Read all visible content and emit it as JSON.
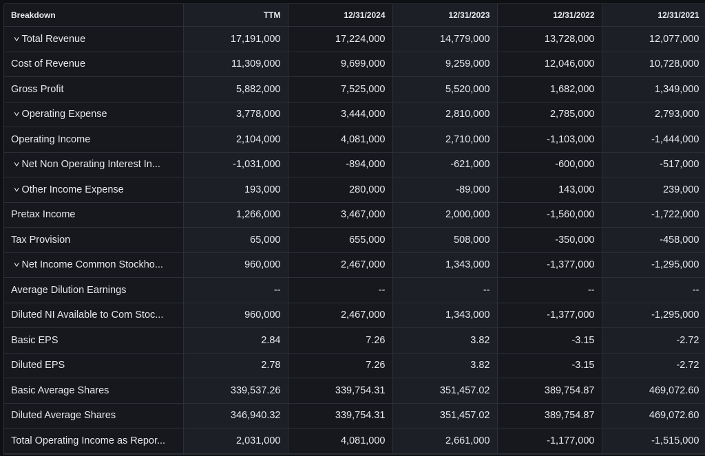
{
  "headers": [
    "Breakdown",
    "TTM",
    "12/31/2024",
    "12/31/2023",
    "12/31/2022",
    "12/31/2021"
  ],
  "rows": [
    {
      "label": "Total Revenue",
      "expandable": true,
      "values": [
        "17,191,000",
        "17,224,000",
        "14,779,000",
        "13,728,000",
        "12,077,000"
      ]
    },
    {
      "label": "Cost of Revenue",
      "expandable": false,
      "values": [
        "11,309,000",
        "9,699,000",
        "9,259,000",
        "12,046,000",
        "10,728,000"
      ]
    },
    {
      "label": "Gross Profit",
      "expandable": false,
      "values": [
        "5,882,000",
        "7,525,000",
        "5,520,000",
        "1,682,000",
        "1,349,000"
      ]
    },
    {
      "label": "Operating Expense",
      "expandable": true,
      "values": [
        "3,778,000",
        "3,444,000",
        "2,810,000",
        "2,785,000",
        "2,793,000"
      ]
    },
    {
      "label": "Operating Income",
      "expandable": false,
      "values": [
        "2,104,000",
        "4,081,000",
        "2,710,000",
        "-1,103,000",
        "-1,444,000"
      ]
    },
    {
      "label": "Net Non Operating Interest In...",
      "expandable": true,
      "values": [
        "-1,031,000",
        "-894,000",
        "-621,000",
        "-600,000",
        "-517,000"
      ]
    },
    {
      "label": "Other Income Expense",
      "expandable": true,
      "values": [
        "193,000",
        "280,000",
        "-89,000",
        "143,000",
        "239,000"
      ]
    },
    {
      "label": "Pretax Income",
      "expandable": false,
      "values": [
        "1,266,000",
        "3,467,000",
        "2,000,000",
        "-1,560,000",
        "-1,722,000"
      ]
    },
    {
      "label": "Tax Provision",
      "expandable": false,
      "values": [
        "65,000",
        "655,000",
        "508,000",
        "-350,000",
        "-458,000"
      ]
    },
    {
      "label": "Net Income Common Stockho...",
      "expandable": true,
      "values": [
        "960,000",
        "2,467,000",
        "1,343,000",
        "-1,377,000",
        "-1,295,000"
      ]
    },
    {
      "label": "Average Dilution Earnings",
      "expandable": false,
      "values": [
        "--",
        "--",
        "--",
        "--",
        "--"
      ]
    },
    {
      "label": "Diluted NI Available to Com Stoc...",
      "expandable": false,
      "values": [
        "960,000",
        "2,467,000",
        "1,343,000",
        "-1,377,000",
        "-1,295,000"
      ]
    },
    {
      "label": "Basic EPS",
      "expandable": false,
      "values": [
        "2.84",
        "7.26",
        "3.82",
        "-3.15",
        "-2.72"
      ]
    },
    {
      "label": "Diluted EPS",
      "expandable": false,
      "values": [
        "2.78",
        "7.26",
        "3.82",
        "-3.15",
        "-2.72"
      ]
    },
    {
      "label": "Basic Average Shares",
      "expandable": false,
      "values": [
        "339,537.26",
        "339,754.31",
        "351,457.02",
        "389,754.87",
        "469,072.60"
      ]
    },
    {
      "label": "Diluted Average Shares",
      "expandable": false,
      "values": [
        "346,940.32",
        "339,754.31",
        "351,457.02",
        "389,754.87",
        "469,072.60"
      ]
    },
    {
      "label": "Total Operating Income as Repor...",
      "expandable": false,
      "values": [
        "2,031,000",
        "4,081,000",
        "2,661,000",
        "-1,177,000",
        "-1,515,000"
      ]
    }
  ],
  "icons": {
    "expand": "chevron-down-icon"
  }
}
